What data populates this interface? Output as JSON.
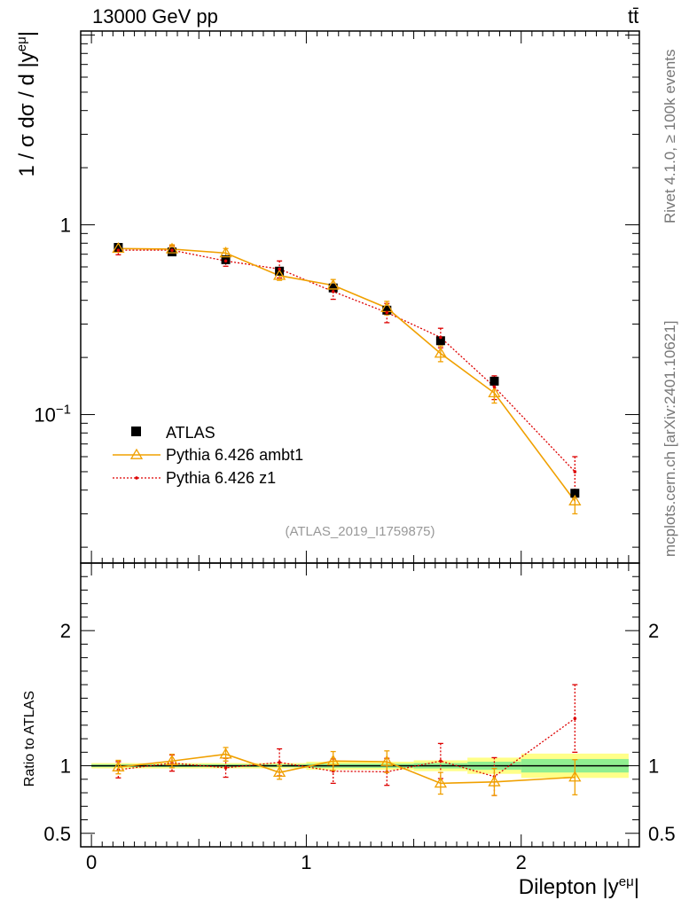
{
  "header": {
    "left": "13000 GeV pp",
    "right": "tt̄"
  },
  "side_labels": {
    "rivet": "Rivet 4.1.0, ≥ 100k events",
    "mcplots": "mcplots.cern.ch [arXiv:2401.10621]"
  },
  "colors": {
    "data": "#000000",
    "ambt1": "#f0a000",
    "z1": "#dd0000",
    "band_inner": "#90ee90",
    "band_outer": "#ffff88"
  },
  "chart_data": {
    "type": "scatter",
    "title": "13000 GeV pp",
    "analysis_label": "(ATLAS_2019_I1759875)",
    "xlabel": "Dilepton |y^eμ|",
    "ylabel": "1 / σ dσ / d |y^eμ|",
    "ratio_ylabel": "Ratio to ATLAS",
    "xlim": [
      -0.05,
      2.55
    ],
    "ylim": [
      0.0165,
      10.5
    ],
    "yscale": "log",
    "ratio_ylim": [
      0.4,
      2.5
    ],
    "x_ticks": [
      "0",
      "1",
      "2"
    ],
    "y_ticks": [
      "1",
      "10^-1"
    ],
    "ratio_ticks": [
      "0.5",
      "1",
      "2"
    ],
    "bins": [
      [
        0,
        0.25
      ],
      [
        0.25,
        0.5
      ],
      [
        0.5,
        0.75
      ],
      [
        0.75,
        1.0
      ],
      [
        1.0,
        1.25
      ],
      [
        1.25,
        1.5
      ],
      [
        1.5,
        1.75
      ],
      [
        1.75,
        2.0
      ],
      [
        2.0,
        2.5
      ]
    ],
    "x": [
      0.125,
      0.375,
      0.625,
      0.875,
      1.125,
      1.375,
      1.625,
      1.875,
      2.25
    ],
    "legend": [
      "ATLAS",
      "Pythia 6.426 ambt1",
      "Pythia 6.426 z1"
    ],
    "series": [
      {
        "name": "ATLAS",
        "style": "data",
        "values": [
          0.76,
          0.72,
          0.655,
          0.57,
          0.465,
          0.355,
          0.245,
          0.15,
          0.0385
        ],
        "ratio_band_inner": [
          0.01,
          0.01,
          0.01,
          0.01,
          0.015,
          0.015,
          0.02,
          0.03,
          0.05
        ],
        "ratio_band_outer": [
          0.02,
          0.02,
          0.02,
          0.02,
          0.03,
          0.03,
          0.04,
          0.06,
          0.09
        ]
      },
      {
        "name": "Pythia 6.426 ambt1",
        "style": "ambt1",
        "values": [
          0.75,
          0.745,
          0.71,
          0.54,
          0.48,
          0.365,
          0.21,
          0.13,
          0.035
        ],
        "errors": [
          0.03,
          0.04,
          0.04,
          0.03,
          0.035,
          0.03,
          0.02,
          0.015,
          0.005
        ],
        "ratios": [
          0.99,
          1.035,
          1.085,
          0.95,
          1.035,
          1.03,
          0.87,
          0.88,
          0.915
        ],
        "ratio_errors": [
          0.05,
          0.05,
          0.05,
          0.05,
          0.07,
          0.08,
          0.08,
          0.1,
          0.13
        ]
      },
      {
        "name": "Pythia 6.426 z1",
        "style": "z1",
        "values": [
          0.735,
          0.735,
          0.645,
          0.585,
          0.445,
          0.345,
          0.255,
          0.14,
          0.05
        ],
        "errors": [
          0.04,
          0.04,
          0.04,
          0.06,
          0.04,
          0.04,
          0.03,
          0.02,
          0.01
        ],
        "ratios": [
          0.97,
          1.02,
          0.985,
          1.025,
          0.96,
          0.955,
          1.035,
          0.92,
          1.35
        ],
        "ratio_errors": [
          0.06,
          0.06,
          0.07,
          0.1,
          0.09,
          0.1,
          0.13,
          0.14,
          0.25
        ]
      }
    ]
  }
}
